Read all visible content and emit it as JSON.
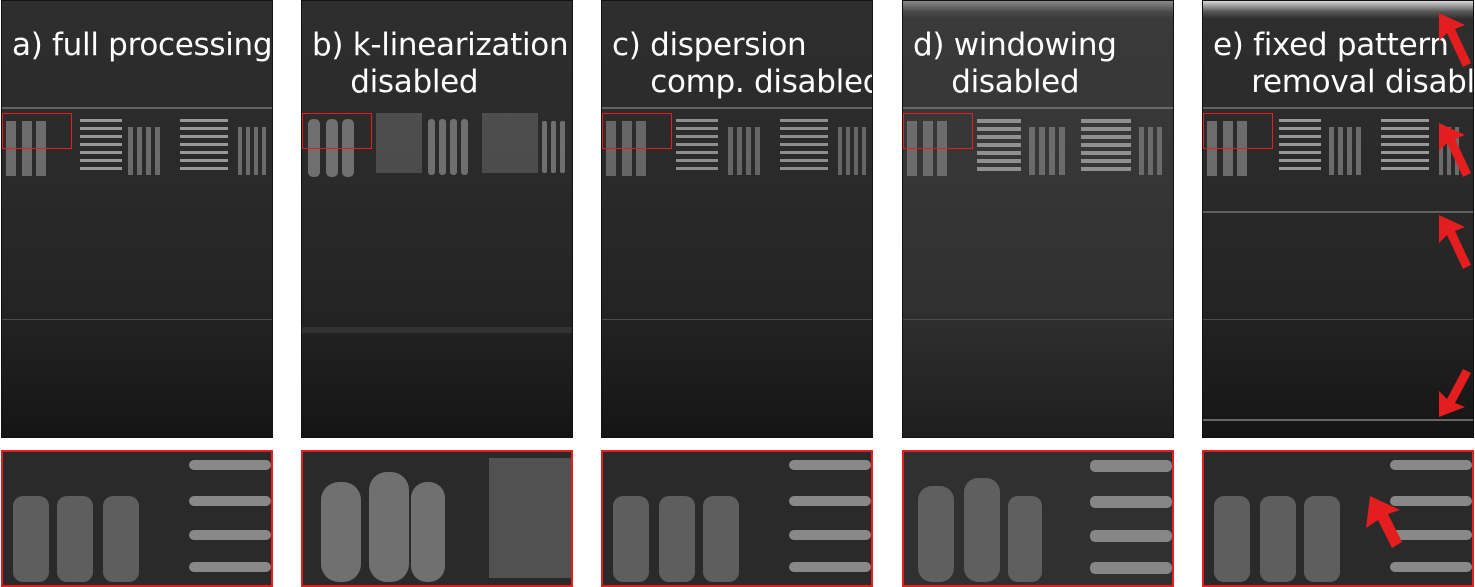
{
  "panels": [
    {
      "label": "a) full processing"
    },
    {
      "label": "b) k-linearization\n    disabled"
    },
    {
      "label": "c) dispersion\n    comp. disabled"
    },
    {
      "label": "d) windowing\n    disabled"
    },
    {
      "label": "e) fixed pattern\n    removal disabled"
    }
  ],
  "colors": {
    "highlight": "#e41e1e",
    "arrow": "#e41e1e",
    "label_text": "#ffffff"
  }
}
